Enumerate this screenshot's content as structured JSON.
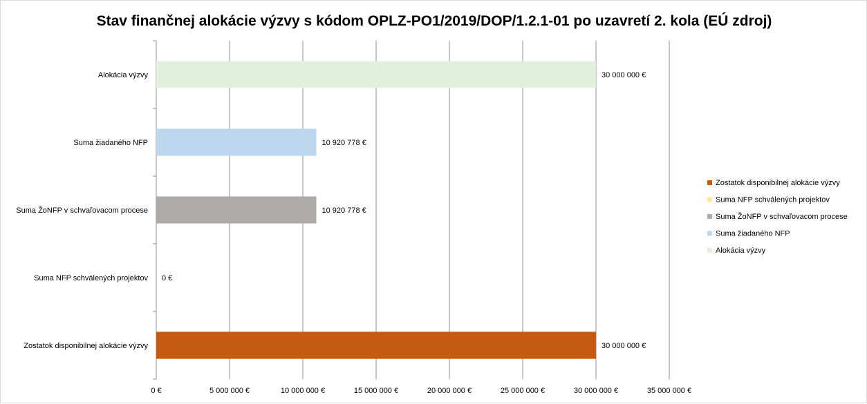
{
  "chart_data": {
    "type": "bar",
    "orientation": "horizontal",
    "title": "Stav finančnej alokácie výzvy s kódom OPLZ-PO1/2019/DOP/1.2.1-01 po uzavretí 2. kola (EÚ zdroj)",
    "categories": [
      "Alokácia výzvy",
      "Suma žiadaného NFP",
      "Suma ŽoNFP v schvaľovacom procese",
      "Suma NFP schválených projektov",
      "Zostatok disponibilnej alokácie výzvy"
    ],
    "values": [
      30000000,
      10920778,
      10920778,
      0,
      30000000
    ],
    "data_labels": [
      "30 000 000 €",
      "10 920 778 €",
      "10 920 778 €",
      "0 €",
      "30 000 000 €"
    ],
    "colors": [
      "#e2efda",
      "#bdd7ee",
      "#aeaaaa",
      "#ffe699",
      "#c55a11"
    ],
    "xlim": [
      0,
      35000000
    ],
    "x_ticks": [
      0,
      5000000,
      10000000,
      15000000,
      20000000,
      25000000,
      30000000,
      35000000
    ],
    "x_tick_labels": [
      "0 €",
      "5 000 000 €",
      "10 000 000 €",
      "15 000 000 €",
      "20 000 000 €",
      "25 000 000 €",
      "30 000 000 €",
      "35 000 000 €"
    ],
    "grid": true,
    "legend_position": "right",
    "legend": [
      {
        "label": "Zostatok disponibilnej alokácie výzvy",
        "color": "#c55a11"
      },
      {
        "label": "Suma NFP schválených projektov",
        "color": "#ffe699"
      },
      {
        "label": "Suma ŽoNFP v schvaľovacom procese",
        "color": "#aeaaaa"
      },
      {
        "label": "Suma žiadaného NFP",
        "color": "#bdd7ee"
      },
      {
        "label": "Alokácia výzvy",
        "color": "#e2efda"
      }
    ]
  }
}
